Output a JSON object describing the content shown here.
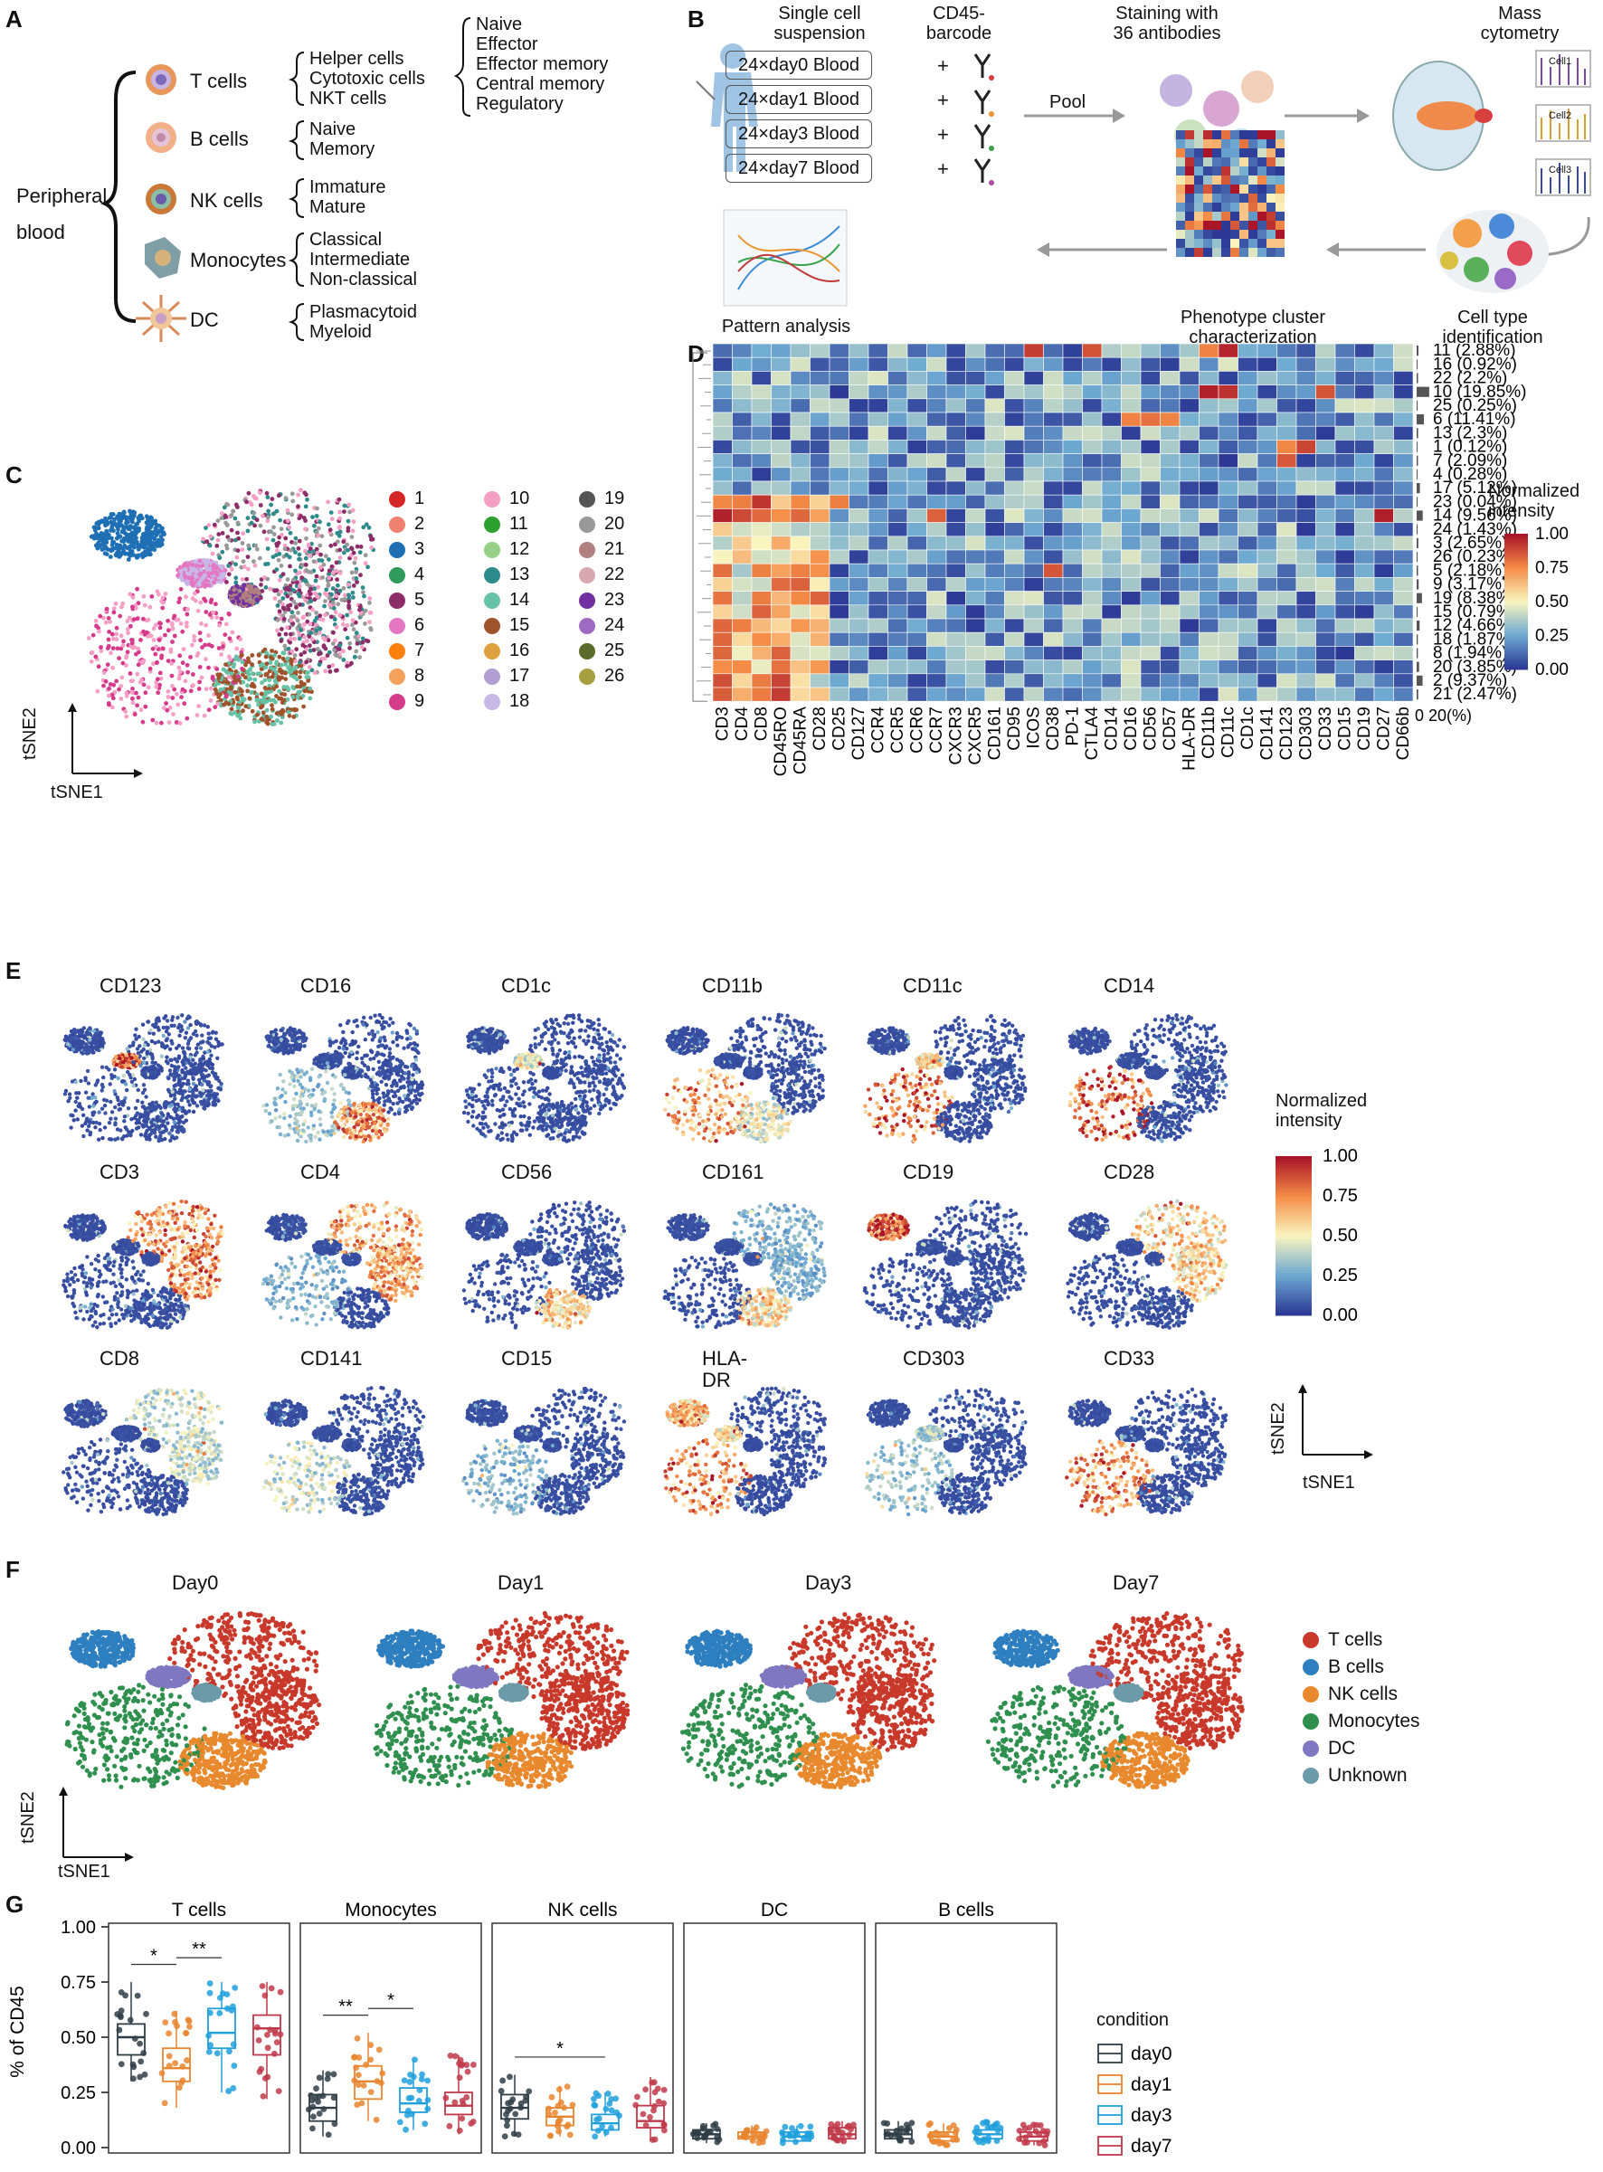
{
  "panels": {
    "A": "A",
    "B": "B",
    "C": "C",
    "D": "D",
    "E": "E",
    "F": "F",
    "G": "G"
  },
  "panel_a": {
    "root": [
      "Peripheral",
      "blood"
    ],
    "cell_types": [
      {
        "name": "T cells",
        "subtypes": [
          "Helper cells",
          "Cytotoxic cells",
          "NKT cells"
        ]
      },
      {
        "name": "B cells",
        "subtypes": [
          "Naive",
          "Memory"
        ]
      },
      {
        "name": "NK cells",
        "subtypes": [
          "Immature",
          "Mature"
        ]
      },
      {
        "name": "Monocytes",
        "subtypes": [
          "Classical",
          "Intermediate",
          "Non-classical"
        ]
      },
      {
        "name": "DC",
        "subtypes": [
          "Plasmacytoid",
          "Myeloid"
        ]
      }
    ],
    "t_helper_subsets": [
      "Naive",
      "Effector",
      "Effector memory",
      "Central memory",
      "Regulatory"
    ],
    "colors": {
      "t": "#e07a3a",
      "b": "#f0a070",
      "nk": "#c9803e",
      "mono": "#7a9aa0",
      "dc": "#e0a080"
    }
  },
  "panel_b": {
    "step1": [
      "Single cell",
      "suspension"
    ],
    "step2": [
      "CD45-",
      "barcode"
    ],
    "step3": [
      "Staining with",
      "36 antibodies"
    ],
    "step4": [
      "Mass",
      "cytometry"
    ],
    "samples": [
      {
        "label": "24×day0 Blood",
        "color": "#f6c9c2"
      },
      {
        "label": "24×day1 Blood",
        "color": "#f8e6c4"
      },
      {
        "label": "24×day3 Blood",
        "color": "#cfe7c3"
      },
      {
        "label": "24×day7 Blood",
        "color": "#e3cde8"
      }
    ],
    "plus": "+",
    "pool": "Pool",
    "cells": [
      "Cell1",
      "Cell2",
      "Cell3"
    ],
    "pattern": "Pattern analysis",
    "phenotype": [
      "Phenotype cluster",
      "characterization"
    ],
    "celltype": [
      "Cell type",
      "identification"
    ]
  },
  "panel_c": {
    "clusters": [
      "1",
      "2",
      "3",
      "4",
      "5",
      "6",
      "7",
      "8",
      "9",
      "10",
      "11",
      "12",
      "13",
      "14",
      "15",
      "16",
      "17",
      "18",
      "19",
      "20",
      "21",
      "22",
      "23",
      "24",
      "25",
      "26"
    ],
    "colors": [
      "#d62728",
      "#f08070",
      "#1f6fb4",
      "#2f9a5c",
      "#8c2d6a",
      "#e377c2",
      "#ff7f0e",
      "#f2a25a",
      "#d63a8a",
      "#f59fc6",
      "#2ca02c",
      "#98d08a",
      "#2e8b8b",
      "#66c2a5",
      "#a0522d",
      "#e0a040",
      "#b09fd0",
      "#c7b8e8",
      "#555555",
      "#999999",
      "#b08080",
      "#d8a8b0",
      "#7030a0",
      "#9c6ac0",
      "#5a6a2a",
      "#a8a040"
    ],
    "axis_x": "tSNE1",
    "axis_y": "tSNE2"
  },
  "panel_d": {
    "markers": [
      "CD3",
      "CD4",
      "CD8",
      "CD45RO",
      "CD45RA",
      "CD28",
      "CD25",
      "CD127",
      "CCR4",
      "CCR5",
      "CCR6",
      "CCR7",
      "CXCR3",
      "CXCR5",
      "CD161",
      "CD95",
      "ICOS",
      "CD38",
      "PD-1",
      "CTLA4",
      "CD14",
      "CD16",
      "CD56",
      "CD57",
      "HLA-DR",
      "CD11b",
      "CD11c",
      "CD1c",
      "CD141",
      "CD123",
      "CD303",
      "CD33",
      "CD15",
      "CD19",
      "CD27",
      "CD66b"
    ],
    "rows": [
      "11 (2.88%)",
      "16 (0.92%)",
      "22 (2.2%)",
      "10 (19.85%)",
      "25 (0.25%)",
      "6 (11.41%)",
      "13 (2.3%)",
      "1 (0.12%)",
      "7 (2.09%)",
      "4 (0.28%)",
      "17 (5.12%)",
      "23 (0.04%)",
      "14 (9.56%)",
      "24 (1.43%)",
      "3 (2.65%)",
      "26 (0.23%)",
      "5 (2.18%)",
      "9 (3.17%)",
      "19 (8.38%)",
      "15 (0.79%)",
      "12 (4.66%)",
      "18 (1.87%)",
      "8 (1.94%)",
      "20 (3.85%)",
      "2 (9.37%)",
      "21 (2.47%)"
    ],
    "row_pct": [
      2.88,
      0.92,
      2.2,
      19.85,
      0.25,
      11.41,
      2.3,
      0.12,
      2.09,
      0.28,
      5.12,
      0.04,
      9.56,
      1.43,
      2.65,
      0.23,
      2.18,
      3.17,
      8.38,
      0.79,
      4.66,
      1.87,
      1.94,
      3.85,
      9.37,
      2.47
    ],
    "pct_axis": [
      "0",
      "20(%)"
    ],
    "legend_title": [
      "Normalized",
      "intensity"
    ],
    "legend_ticks": [
      "1.00",
      "0.75",
      "0.50",
      "0.25",
      "0.00"
    ]
  },
  "panel_e": {
    "markers": [
      "CD123",
      "CD16",
      "CD1c",
      "CD11b",
      "CD11c",
      "CD14",
      "CD3",
      "CD4",
      "CD56",
      "CD161",
      "CD19",
      "CD28",
      "CD8",
      "CD141",
      "CD15",
      "HLA-DR",
      "CD303",
      "CD33"
    ],
    "legend_title": [
      "Normalized",
      "intensity"
    ],
    "legend_ticks": [
      "1.00",
      "0.75",
      "0.50",
      "0.25",
      "0.00"
    ],
    "axis_x": "tSNE1",
    "axis_y": "tSNE2"
  },
  "panel_f": {
    "days": [
      "Day0",
      "Day1",
      "Day3",
      "Day7"
    ],
    "legend": [
      {
        "label": "T cells",
        "color": "#c8392b"
      },
      {
        "label": "B cells",
        "color": "#2e7fbf"
      },
      {
        "label": "NK cells",
        "color": "#e8892e"
      },
      {
        "label": "Monocytes",
        "color": "#2f8f4e"
      },
      {
        "label": "DC",
        "color": "#7f78c0"
      },
      {
        "label": "Unknown",
        "color": "#6b9aa8"
      }
    ],
    "axis_x": "tSNE1",
    "axis_y": "tSNE2"
  },
  "chart_data": {
    "type": "box",
    "title": "",
    "ylabel": "% of CD45",
    "ylim": [
      0,
      1
    ],
    "yticks": [
      "0.00",
      "0.25",
      "0.50",
      "0.75",
      "1.00"
    ],
    "facets": [
      "T cells",
      "Monocytes",
      "NK cells",
      "DC",
      "B cells"
    ],
    "conditions": [
      {
        "name": "day0",
        "color": "#2f3e46"
      },
      {
        "name": "day1",
        "color": "#e8852f"
      },
      {
        "name": "day3",
        "color": "#1ea0dc"
      },
      {
        "name": "day7",
        "color": "#c0394a"
      }
    ],
    "legend_title": "condition",
    "boxes": {
      "T cells": [
        [
          0.3,
          0.42,
          0.5,
          0.56,
          0.75
        ],
        [
          0.18,
          0.3,
          0.36,
          0.45,
          0.62
        ],
        [
          0.25,
          0.45,
          0.52,
          0.63,
          0.75
        ],
        [
          0.22,
          0.42,
          0.54,
          0.6,
          0.75
        ]
      ],
      "Monocytes": [
        [
          0.05,
          0.12,
          0.18,
          0.24,
          0.35
        ],
        [
          0.12,
          0.22,
          0.3,
          0.37,
          0.52
        ],
        [
          0.08,
          0.16,
          0.2,
          0.27,
          0.4
        ],
        [
          0.06,
          0.15,
          0.19,
          0.25,
          0.42
        ]
      ],
      "NK cells": [
        [
          0.05,
          0.13,
          0.18,
          0.24,
          0.33
        ],
        [
          0.05,
          0.1,
          0.14,
          0.18,
          0.28
        ],
        [
          0.05,
          0.08,
          0.11,
          0.15,
          0.25
        ],
        [
          0.03,
          0.09,
          0.12,
          0.19,
          0.32
        ]
      ],
      "DC": [
        [
          0.02,
          0.04,
          0.06,
          0.08,
          0.11
        ],
        [
          0.02,
          0.04,
          0.05,
          0.07,
          0.1
        ],
        [
          0.02,
          0.03,
          0.05,
          0.07,
          0.1
        ],
        [
          0.02,
          0.04,
          0.06,
          0.09,
          0.12
        ]
      ],
      "B cells": [
        [
          0.02,
          0.04,
          0.06,
          0.08,
          0.12
        ],
        [
          0.01,
          0.03,
          0.05,
          0.07,
          0.11
        ],
        [
          0.02,
          0.04,
          0.06,
          0.08,
          0.12
        ],
        [
          0.01,
          0.03,
          0.05,
          0.07,
          0.11
        ]
      ]
    },
    "significance": [
      {
        "facet": "T cells",
        "from": 0,
        "to": 1,
        "label": "*"
      },
      {
        "facet": "T cells",
        "from": 1,
        "to": 2,
        "label": "**"
      },
      {
        "facet": "Monocytes",
        "from": 0,
        "to": 1,
        "label": "**"
      },
      {
        "facet": "Monocytes",
        "from": 1,
        "to": 2,
        "label": "*"
      },
      {
        "facet": "NK cells",
        "from": 0,
        "to": 2,
        "label": "*"
      }
    ]
  }
}
